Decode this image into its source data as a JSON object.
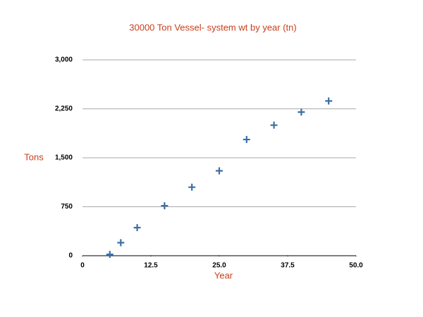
{
  "chart_data": {
    "type": "scatter",
    "title": "30000 Ton Vessel- system wt by year (tn)",
    "xlabel": "Year",
    "ylabel": "Tons",
    "series": [
      {
        "name": "system wt",
        "color": "#3d6ea5",
        "x": [
          5,
          7,
          10,
          15,
          20,
          25,
          30,
          35,
          40,
          45
        ],
        "values": [
          20,
          200,
          430,
          765,
          1050,
          1300,
          1780,
          2000,
          2200,
          2370
        ]
      }
    ],
    "xlim": [
      0,
      50
    ],
    "xticks": [
      0,
      12.5,
      {
        "value": 25,
        "label": "25.0"
      },
      37.5,
      {
        "value": 50,
        "label": "50.0"
      }
    ],
    "ylim": [
      0,
      3000
    ],
    "yticks": [
      0,
      750,
      {
        "value": 1500,
        "label": "1,500"
      },
      {
        "value": 2250,
        "label": "2,250"
      },
      {
        "value": 3000,
        "label": "3,000"
      }
    ],
    "grid": true
  }
}
